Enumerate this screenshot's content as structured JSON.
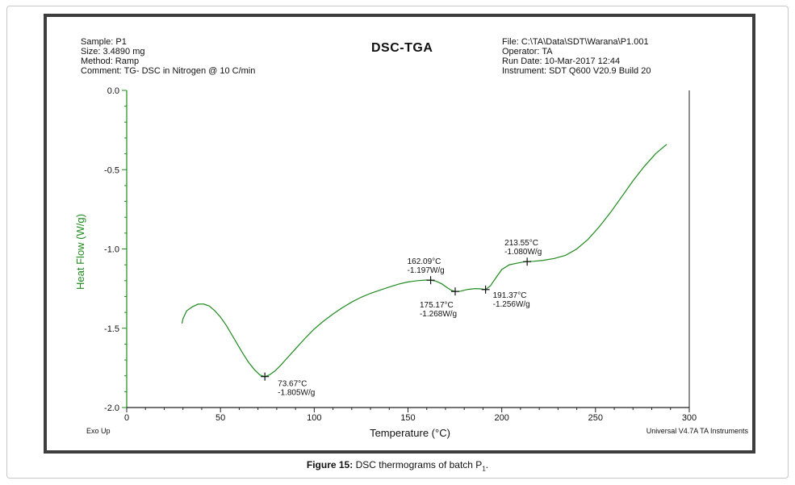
{
  "header": {
    "sample": "Sample: P1",
    "size": "Size:  3.4890 mg",
    "method": "Method: Ramp",
    "comment": "Comment: TG- DSC in Nitrogen  @  10 C/min",
    "title": "DSC-TGA",
    "file": "File: C:\\TA\\Data\\SDT\\Warana\\P1.001",
    "operator": "Operator: TA",
    "run_date": "Run Date: 10-Mar-2017 12:44",
    "instrument": "Instrument: SDT Q600 V20.9 Build 20"
  },
  "footer": {
    "exo": "Exo Up",
    "software": "Universal V4.7A TA Instruments"
  },
  "caption": {
    "label": "Figure 15:",
    "text": "DSC thermograms of batch P",
    "subscript": "1",
    "end": "."
  },
  "colors": {
    "curve": "#1e8b1e",
    "axis_label": "#1e8b1e",
    "axes": "#222222"
  },
  "chart_data": {
    "type": "line",
    "xlabel": "Temperature (°C)",
    "ylabel": "Heat Flow (W/g)",
    "xlim": [
      0,
      300
    ],
    "ylim": [
      -2.0,
      0.0
    ],
    "x_ticks": [
      0,
      50,
      100,
      150,
      200,
      250,
      300
    ],
    "y_ticks": [
      0.0,
      -0.5,
      -1.0,
      -1.5,
      -2.0
    ],
    "x_tick_labels": [
      "0",
      "50",
      "100",
      "150",
      "200",
      "250",
      "300"
    ],
    "y_tick_labels": [
      "0.0",
      "-0.5",
      "-1.0",
      "-1.5",
      "-2.0"
    ],
    "grid": false,
    "series": [
      {
        "x": [
          29.5,
          30,
          32,
          35,
          38,
          41,
          44,
          47,
          50,
          53,
          56,
          59,
          62,
          65,
          68,
          71,
          73.67,
          76,
          79,
          82,
          85,
          90,
          95,
          100,
          105,
          110,
          115,
          120,
          125,
          130,
          135,
          140,
          145,
          150,
          155,
          160,
          162.09,
          165,
          168,
          171,
          173,
          175.17,
          178,
          182,
          186,
          189,
          191.37,
          194,
          197,
          200,
          204,
          208,
          211,
          213.55,
          217,
          222,
          228,
          234,
          240,
          246,
          252,
          258,
          264,
          270,
          276,
          282,
          285,
          288
        ],
        "y": [
          -1.47,
          -1.44,
          -1.39,
          -1.365,
          -1.348,
          -1.347,
          -1.36,
          -1.39,
          -1.43,
          -1.48,
          -1.54,
          -1.6,
          -1.66,
          -1.715,
          -1.76,
          -1.795,
          -1.805,
          -1.795,
          -1.77,
          -1.735,
          -1.695,
          -1.63,
          -1.565,
          -1.505,
          -1.455,
          -1.41,
          -1.37,
          -1.335,
          -1.305,
          -1.28,
          -1.26,
          -1.24,
          -1.222,
          -1.208,
          -1.2,
          -1.196,
          -1.197,
          -1.203,
          -1.22,
          -1.245,
          -1.26,
          -1.268,
          -1.266,
          -1.255,
          -1.25,
          -1.252,
          -1.256,
          -1.232,
          -1.18,
          -1.13,
          -1.1,
          -1.09,
          -1.083,
          -1.08,
          -1.078,
          -1.072,
          -1.06,
          -1.04,
          -1.0,
          -0.94,
          -0.86,
          -0.77,
          -0.67,
          -0.57,
          -0.48,
          -0.4,
          -0.37,
          -0.34
        ]
      }
    ],
    "markers": [
      {
        "x": 73.67,
        "y": -1.805,
        "line1": "73.67°C",
        "line2": "-1.805W/g"
      },
      {
        "x": 162.09,
        "y": -1.197,
        "line1": "162.09°C",
        "line2": "-1.197W/g"
      },
      {
        "x": 175.17,
        "y": -1.268,
        "line1": "175.17°C",
        "line2": "-1.268W/g"
      },
      {
        "x": 191.37,
        "y": -1.256,
        "line1": "191.37°C",
        "line2": "-1.256W/g"
      },
      {
        "x": 213.55,
        "y": -1.08,
        "line1": "213.55°C",
        "line2": "-1.080W/g"
      }
    ]
  }
}
